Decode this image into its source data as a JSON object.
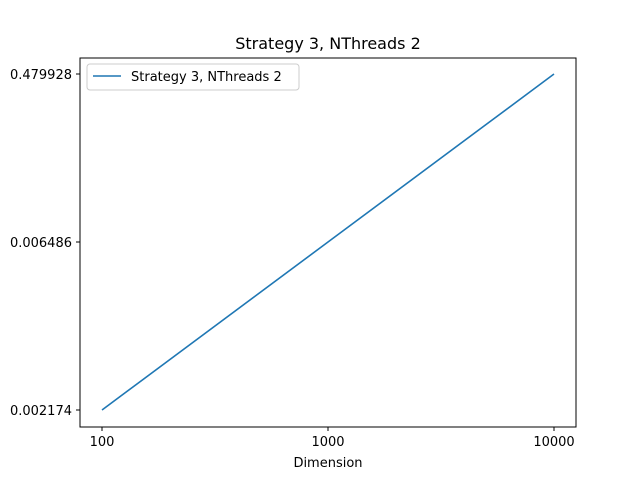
{
  "chart_data": {
    "type": "line",
    "title": "Strategy 3, NThreads 2",
    "xlabel": "Dimension",
    "ylabel": "",
    "x_scale": "log",
    "x_ticks": [
      "100",
      "1000",
      "10000"
    ],
    "y_ticks": [
      "0.002174",
      "0.006486",
      "0.479928"
    ],
    "series": [
      {
        "name": "Strategy 3, NThreads 2",
        "color": "#1f77b4",
        "x": [
          100,
          1000,
          10000
        ],
        "y": [
          "0.002174",
          "0.006486",
          "0.479928"
        ]
      }
    ],
    "grid": false,
    "legend_position": "top-left"
  }
}
